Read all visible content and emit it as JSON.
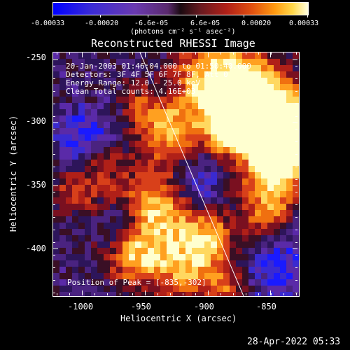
{
  "colorbar": {
    "tick_labels": [
      "-0.00033",
      "-0.00020",
      "-6.6e-05",
      "6.6e-05",
      "0.00020",
      "0.00033"
    ],
    "unit_label": "(photons cm⁻² s⁻¹ asec⁻²)",
    "colors": [
      "#0000ff",
      "#6a3ab0",
      "#1a0a10",
      "#b02018",
      "#ff9a10",
      "#ffffe0"
    ]
  },
  "plot": {
    "title": "Reconstructed RHESSI Image",
    "xlabel": "Heliocentric X (arcsec)",
    "ylabel": "Heliocentric Y (arcsec)",
    "x_ticks": [
      "-1000",
      "-950",
      "-900",
      "-850"
    ],
    "y_ticks": [
      "-250",
      "-300",
      "-350",
      "-400"
    ],
    "xlim": [
      -1022,
      -828
    ],
    "ylim": [
      -437,
      -244
    ],
    "info_lines": [
      "20-Jan-2003 01:46:04.000 to 01:50:40.000",
      "Detectors: 3F 4F 5F 6F 7F 8F, Att 0",
      "Energy Range: 12.0 - 25.0 keV",
      "Clean    Total counts: 4.16E+03"
    ],
    "peak_label": "Position of Peak = [-835,-302]",
    "limb_color": "#ffffff"
  },
  "footer": {
    "timestamp": "28-Apr-2022 05:33"
  }
}
